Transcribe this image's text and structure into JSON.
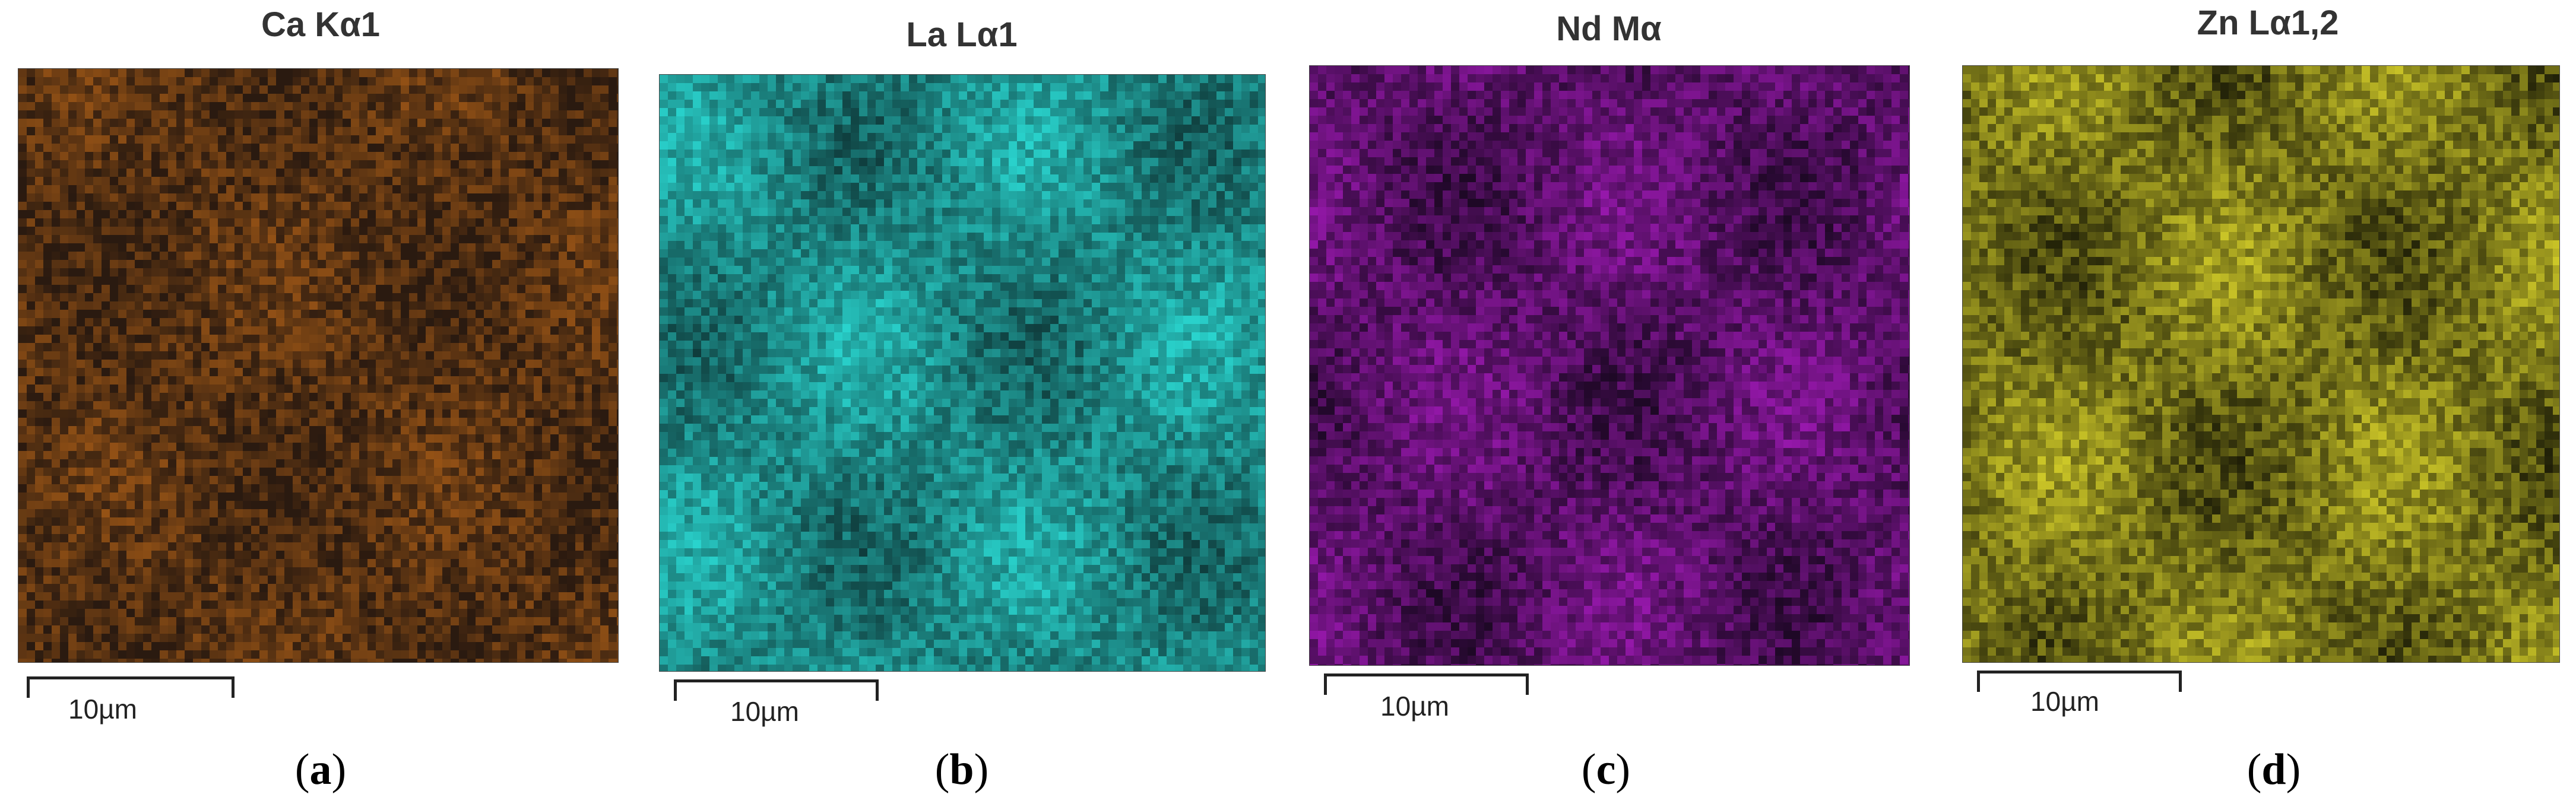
{
  "panels": [
    {
      "title": "Ca Kα1",
      "scale": "10µm",
      "letter": "a",
      "color": "#e07a1a",
      "bg": "#2a1a10"
    },
    {
      "title": "La Lα1",
      "scale": "10µm",
      "letter": "b",
      "color": "#2ad6d0",
      "bg": "#0f3a3a"
    },
    {
      "title": "Nd Mα",
      "scale": "10µm",
      "letter": "c",
      "color": "#b01cc8",
      "bg": "#1e0826"
    },
    {
      "title": "Zn Lα1,2",
      "scale": "10µm",
      "letter": "d",
      "color": "#d8d22a",
      "bg": "#1e1e08"
    }
  ]
}
